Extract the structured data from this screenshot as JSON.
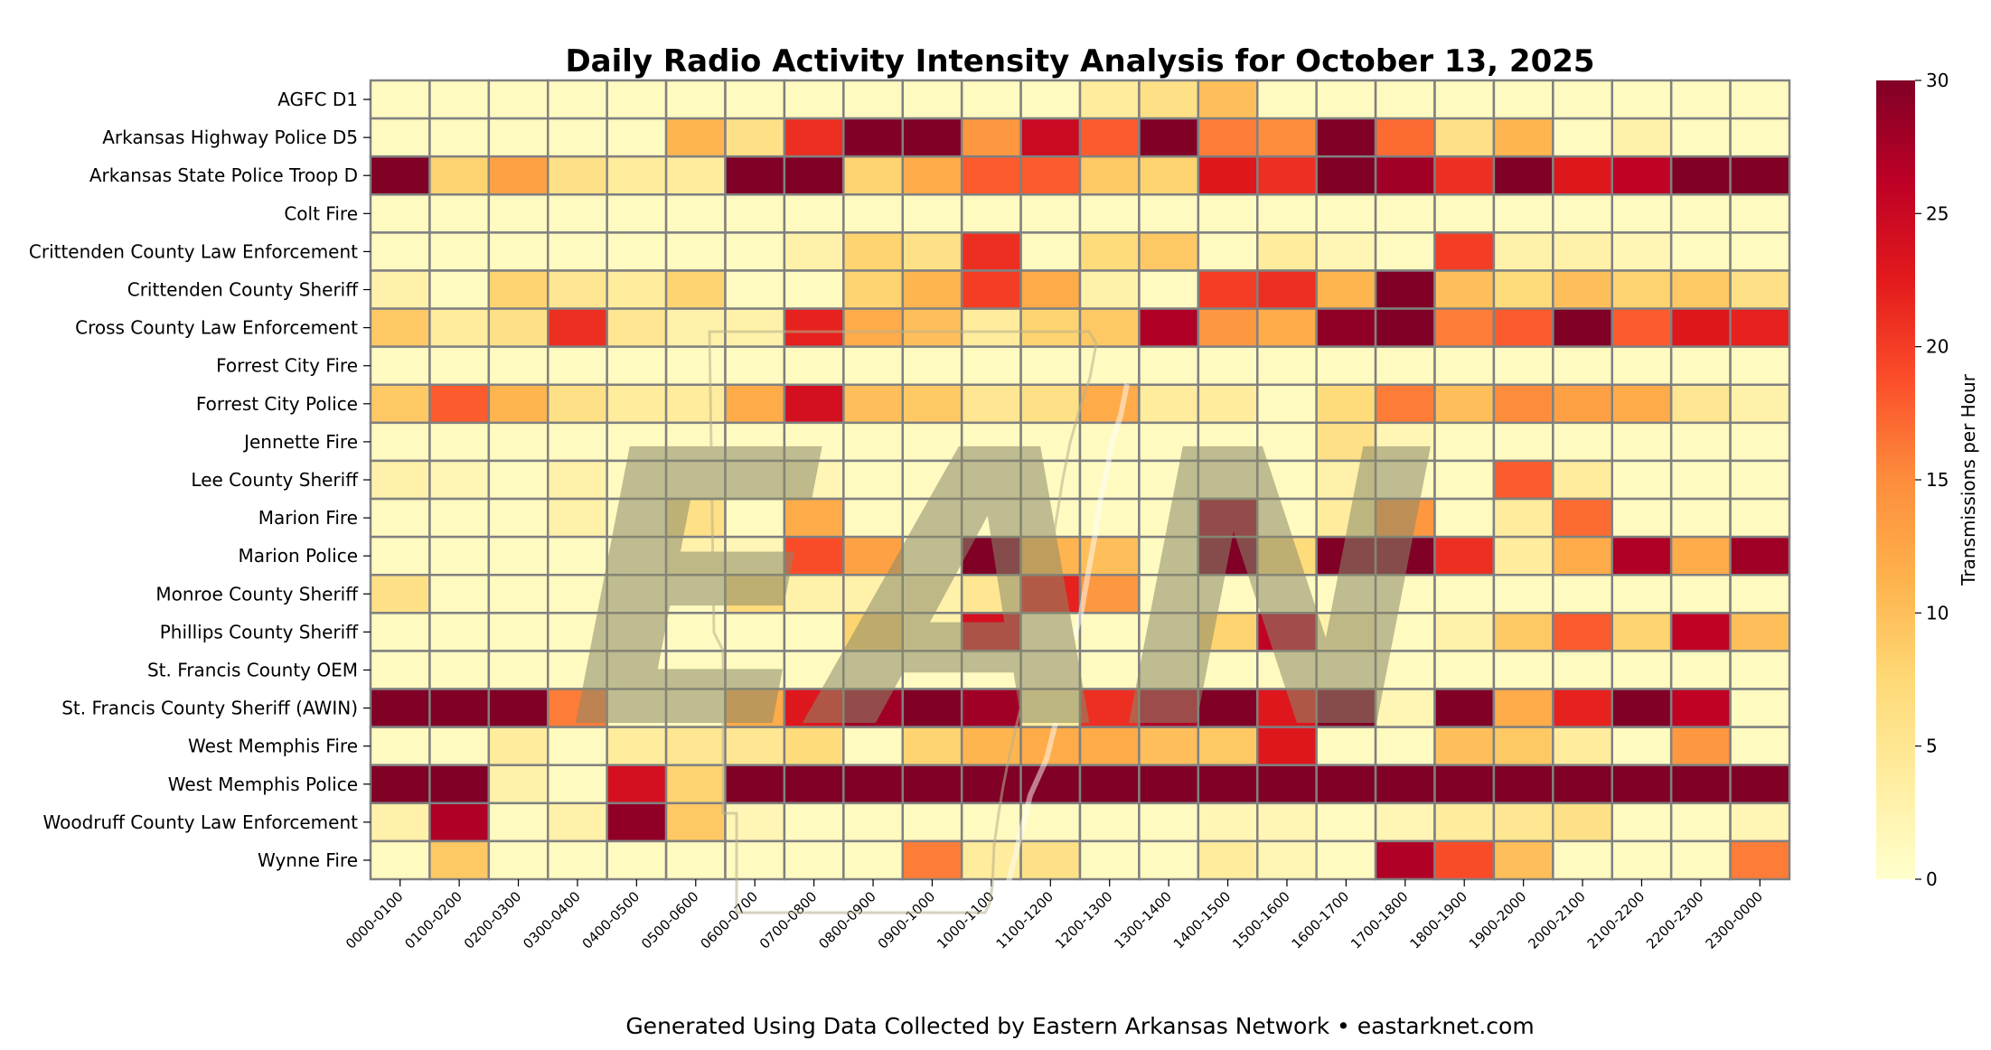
{
  "chart_data": {
    "type": "heatmap",
    "title": "Daily Radio Activity Intensity Analysis for October 13, 2025",
    "footer": "Generated Using Data Collected by Eastern Arkansas Network • eastarknet.com",
    "colorbar_label": "Transmissions per Hour",
    "colorbar_ticks": [
      0,
      5,
      10,
      15,
      20,
      25,
      30
    ],
    "value_range": [
      0,
      30
    ],
    "colormap": "YlOrRd",
    "grid_color": "#808080",
    "watermark": "EAN",
    "x_labels": [
      "0000-0100",
      "0100-0200",
      "0200-0300",
      "0300-0400",
      "0400-0500",
      "0500-0600",
      "0600-0700",
      "0700-0800",
      "0800-0900",
      "0900-1000",
      "1000-1100",
      "1100-1200",
      "1200-1300",
      "1300-1400",
      "1400-1500",
      "1500-1600",
      "1600-1700",
      "1700-1800",
      "1800-1900",
      "1900-2000",
      "2000-2100",
      "2100-2200",
      "2200-2300",
      "2300-0000"
    ],
    "y_labels": [
      "AGFC D1",
      "Arkansas Highway Police D5",
      "Arkansas State Police Troop D",
      "Colt Fire",
      "Crittenden County Law Enforcement",
      "Crittenden County Sheriff",
      "Cross County Law Enforcement",
      "Forrest City Fire",
      "Forrest City Police",
      "Jennette Fire",
      "Lee County Sheriff",
      "Marion Fire",
      "Marion Police",
      "Monroe County Sheriff",
      "Phillips County Sheriff",
      "St. Francis County OEM",
      "St. Francis County Sheriff (AWIN)",
      "West Memphis Fire",
      "West Memphis Police",
      "Woodruff County Law Enforcement",
      "Wynne Fire"
    ],
    "values": [
      [
        1,
        1,
        1,
        1,
        1,
        1,
        1,
        1,
        1,
        1,
        1,
        1,
        4,
        6,
        10,
        1,
        1,
        1,
        1,
        1,
        1,
        1,
        1,
        1
      ],
      [
        1,
        1,
        1,
        1,
        1,
        11,
        6,
        21,
        30,
        30,
        14,
        25,
        18,
        30,
        16,
        15,
        30,
        17,
        6,
        11,
        1,
        3,
        1,
        1
      ],
      [
        30,
        8,
        13,
        6,
        4,
        4,
        30,
        30,
        8,
        12,
        18,
        18,
        9,
        8,
        23,
        21,
        30,
        28,
        21,
        30,
        23,
        26,
        30,
        30
      ],
      [
        1,
        1,
        1,
        1,
        1,
        1,
        1,
        1,
        1,
        1,
        1,
        1,
        1,
        1,
        1,
        1,
        1,
        1,
        1,
        1,
        1,
        1,
        1,
        1
      ],
      [
        1,
        1,
        1,
        1,
        1,
        1,
        1,
        3,
        8,
        6,
        21,
        1,
        7,
        9,
        1,
        4,
        2,
        1,
        20,
        3,
        3,
        2,
        1,
        1
      ],
      [
        3,
        1,
        8,
        5,
        4,
        8,
        1,
        1,
        8,
        11,
        20,
        12,
        3,
        1,
        20,
        21,
        11,
        30,
        10,
        7,
        10,
        8,
        9,
        6
      ],
      [
        9,
        4,
        6,
        21,
        5,
        3,
        3,
        22,
        12,
        10,
        4,
        8,
        9,
        27,
        14,
        12,
        29,
        30,
        16,
        18,
        30,
        18,
        23,
        22
      ],
      [
        1,
        1,
        1,
        1,
        1,
        1,
        1,
        1,
        1,
        1,
        1,
        1,
        1,
        1,
        1,
        1,
        1,
        1,
        1,
        1,
        1,
        1,
        1,
        1
      ],
      [
        9,
        18,
        11,
        6,
        4,
        4,
        12,
        24,
        10,
        9,
        5,
        6,
        12,
        4,
        4,
        1,
        7,
        16,
        10,
        15,
        13,
        12,
        5,
        3
      ],
      [
        1,
        1,
        1,
        1,
        1,
        1,
        1,
        1,
        1,
        1,
        1,
        1,
        1,
        1,
        1,
        1,
        6,
        2,
        1,
        1,
        1,
        1,
        1,
        1
      ],
      [
        3,
        2,
        1,
        3,
        1,
        1,
        1,
        2,
        1,
        1,
        1,
        1,
        1,
        1,
        1,
        1,
        3,
        1,
        1,
        18,
        4,
        1,
        1,
        1
      ],
      [
        1,
        1,
        1,
        3,
        1,
        6,
        1,
        12,
        1,
        1,
        1,
        1,
        1,
        1,
        28,
        1,
        4,
        14,
        1,
        4,
        17,
        1,
        1,
        1
      ],
      [
        1,
        1,
        1,
        1,
        1,
        3,
        2,
        19,
        13,
        1,
        30,
        11,
        10,
        1,
        30,
        7,
        30,
        30,
        21,
        4,
        12,
        27,
        12,
        28
      ],
      [
        6,
        1,
        1,
        1,
        1,
        1,
        7,
        3,
        3,
        3,
        5,
        22,
        14,
        1,
        1,
        1,
        1,
        1,
        1,
        1,
        1,
        1,
        1,
        1
      ],
      [
        1,
        1,
        1,
        1,
        1,
        1,
        1,
        1,
        8,
        3,
        24,
        1,
        1,
        1,
        8,
        26,
        3,
        1,
        3,
        9,
        18,
        8,
        26,
        10
      ],
      [
        1,
        1,
        1,
        1,
        1,
        1,
        1,
        1,
        1,
        1,
        1,
        1,
        1,
        1,
        1,
        1,
        1,
        1,
        1,
        1,
        1,
        1,
        1,
        1
      ],
      [
        30,
        30,
        30,
        16,
        1,
        1,
        12,
        23,
        28,
        30,
        28,
        4,
        21,
        27,
        30,
        23,
        30,
        2,
        30,
        12,
        22,
        30,
        26,
        1
      ],
      [
        1,
        1,
        4,
        1,
        4,
        5,
        5,
        7,
        1,
        8,
        11,
        12,
        12,
        10,
        9,
        23,
        1,
        1,
        10,
        9,
        4,
        1,
        14,
        1
      ],
      [
        30,
        30,
        3,
        1,
        24,
        8,
        30,
        30,
        30,
        30,
        30,
        30,
        30,
        30,
        30,
        30,
        30,
        30,
        30,
        30,
        30,
        30,
        30,
        30
      ],
      [
        3,
        27,
        1,
        3,
        29,
        9,
        2,
        1,
        1,
        1,
        1,
        1,
        1,
        1,
        2,
        2,
        1,
        2,
        4,
        5,
        6,
        1,
        1,
        2
      ],
      [
        1,
        9,
        1,
        1,
        1,
        1,
        1,
        1,
        1,
        16,
        4,
        6,
        1,
        1,
        4,
        2,
        1,
        27,
        19,
        10,
        1,
        1,
        1,
        16
      ]
    ]
  }
}
